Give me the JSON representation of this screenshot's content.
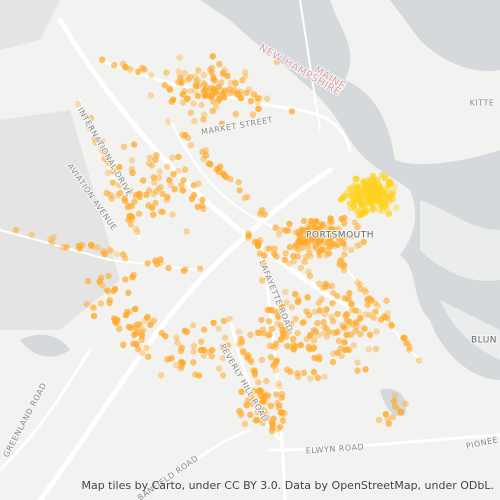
{
  "labels": [
    "MAINE",
    "NEW HAMPSHIRE",
    "KITTE",
    "MARKET STREET",
    "INTERNATIONAL DRIVE",
    "AVIATION AVENUE",
    "PORTSMOUTH",
    "LAFAYETTE ROAD",
    "PEVERLY HILL ROAD",
    "GREENLAND ROAD",
    "ELWYN ROAD",
    "BANFIELD ROAD",
    "BLUN",
    "PIONEE"
  ],
  "attribution": "Map tiles by Carto, under CC BY 3.0. Data by OpenStreetMap, under ODbL."
}
